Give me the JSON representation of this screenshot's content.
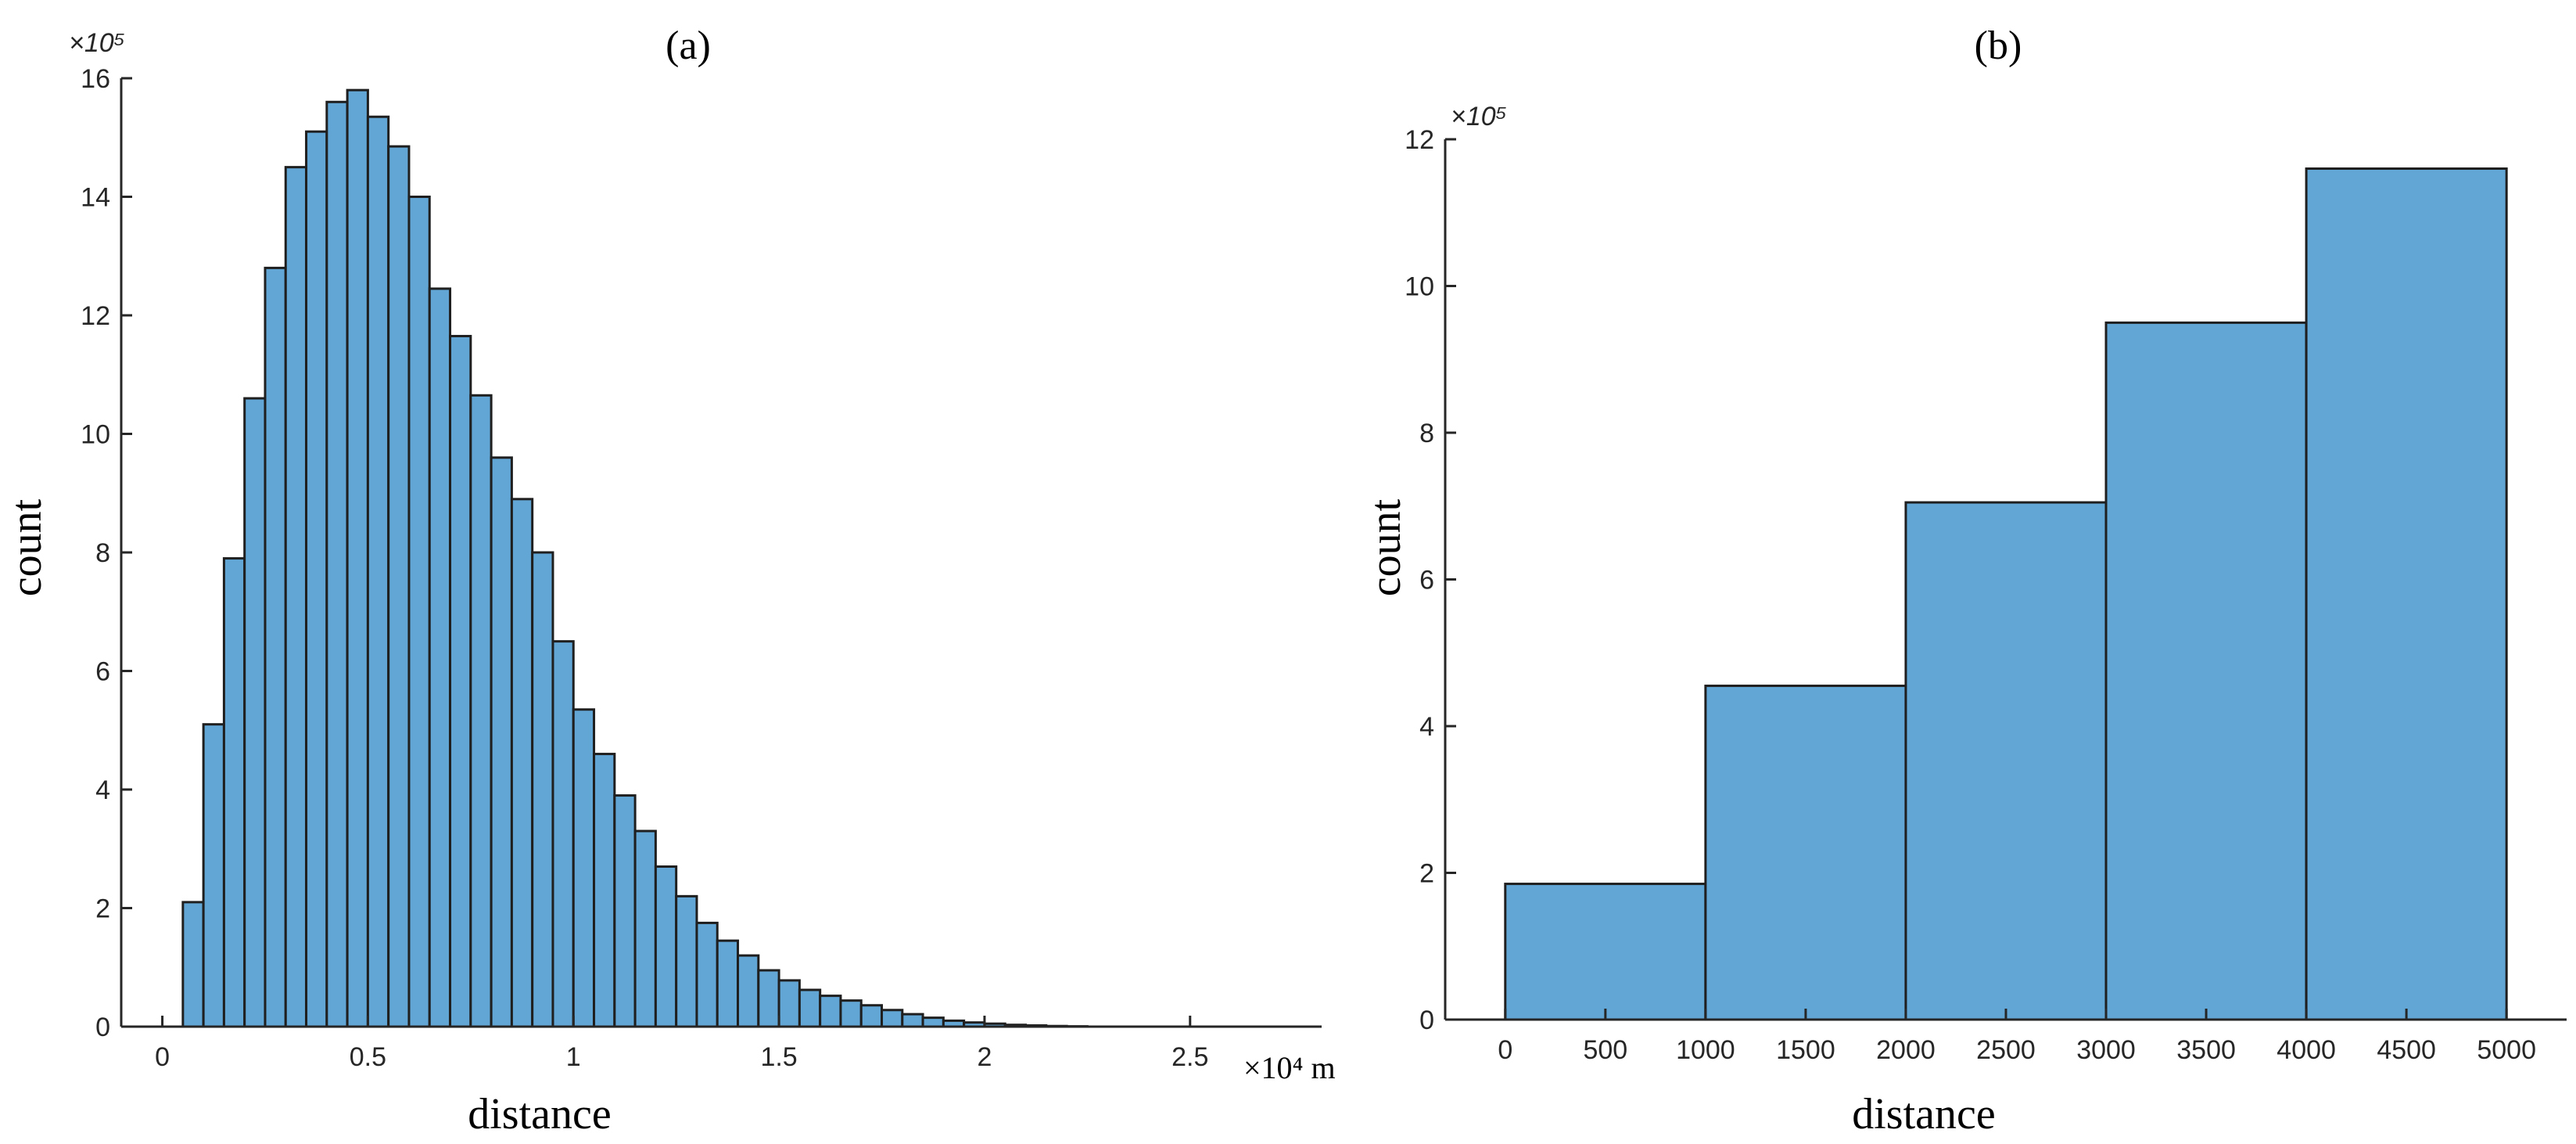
{
  "chart_data": [
    {
      "type": "bar",
      "title": "(a)",
      "xlabel": "distance",
      "ylabel": "count",
      "x_exponent_label": "×10⁴ m",
      "y_exponent_label": "×10⁵",
      "xlim": [
        -0.1,
        2.82
      ],
      "ylim": [
        0,
        16
      ],
      "x_ticks": [
        0,
        0.5,
        1,
        1.5,
        2,
        2.5
      ],
      "x_tick_labels": [
        "0",
        "0.5",
        "1",
        "1.5",
        "2",
        "2.5"
      ],
      "y_ticks": [
        0,
        2,
        4,
        6,
        8,
        10,
        12,
        14,
        16
      ],
      "y_tick_labels": [
        "0",
        "2",
        "4",
        "6",
        "8",
        "10",
        "12",
        "14",
        "16"
      ],
      "bin_width": 0.05,
      "bin_edges_start": 0.05,
      "values": [
        2.1,
        5.1,
        7.9,
        10.6,
        12.8,
        14.5,
        15.1,
        15.6,
        15.8,
        15.35,
        14.85,
        14.0,
        12.45,
        11.65,
        10.65,
        9.6,
        8.9,
        8.0,
        6.5,
        5.35,
        4.6,
        3.9,
        3.3,
        2.7,
        2.2,
        1.75,
        1.45,
        1.2,
        0.95,
        0.78,
        0.62,
        0.52,
        0.44,
        0.36,
        0.28,
        0.21,
        0.15,
        0.1,
        0.07,
        0.05,
        0.03,
        0.02,
        0.01,
        0.005
      ],
      "grid": false,
      "bar_color": "#62a6d6",
      "edge_color": "#1f1f1f"
    },
    {
      "type": "bar",
      "title": "(b)",
      "xlabel": "distance",
      "ylabel": "count",
      "y_exponent_label": "×10⁵",
      "xlim": [
        -300,
        5300
      ],
      "ylim": [
        0,
        12
      ],
      "x_ticks": [
        0,
        500,
        1000,
        1500,
        2000,
        2500,
        3000,
        3500,
        4000,
        4500,
        5000
      ],
      "x_tick_labels": [
        "0",
        "500",
        "1000",
        "1500",
        "2000",
        "2500",
        "3000",
        "3500",
        "4000",
        "4500",
        "5000"
      ],
      "y_ticks": [
        0,
        2,
        4,
        6,
        8,
        10,
        12
      ],
      "y_tick_labels": [
        "0",
        "2",
        "4",
        "6",
        "8",
        "10",
        "12"
      ],
      "bin_edges": [
        0,
        1000,
        2000,
        3000,
        4000,
        5000
      ],
      "values": [
        1.85,
        4.55,
        7.05,
        9.5,
        11.6
      ],
      "grid": false,
      "bar_color": "#62a6d6",
      "edge_color": "#1f1f1f"
    }
  ]
}
